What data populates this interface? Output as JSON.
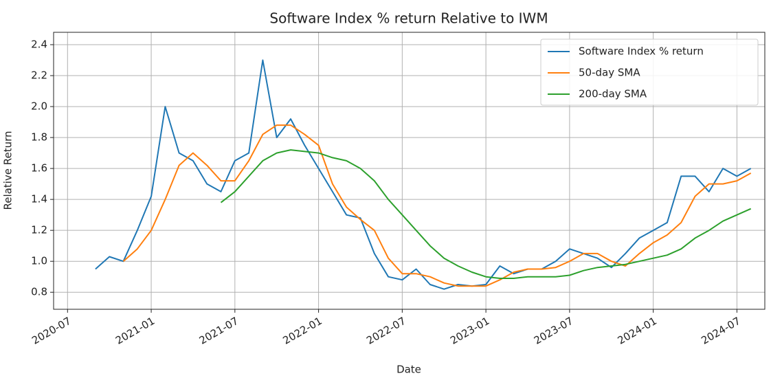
{
  "chart_data": {
    "type": "line",
    "title": "Software Index % return Relative to IWM",
    "x_label": "Date",
    "y_label": "Relative Return",
    "x": [
      "2020-09",
      "2020-10",
      "2020-11",
      "2020-12",
      "2021-01",
      "2021-02",
      "2021-03",
      "2021-04",
      "2021-05",
      "2021-06",
      "2021-07",
      "2021-08",
      "2021-09",
      "2021-10",
      "2021-11",
      "2021-12",
      "2022-01",
      "2022-02",
      "2022-03",
      "2022-04",
      "2022-05",
      "2022-06",
      "2022-07",
      "2022-08",
      "2022-09",
      "2022-10",
      "2022-11",
      "2022-12",
      "2023-01",
      "2023-02",
      "2023-03",
      "2023-04",
      "2023-05",
      "2023-06",
      "2023-07",
      "2023-08",
      "2023-09",
      "2023-10",
      "2023-11",
      "2023-12",
      "2024-01",
      "2024-02",
      "2024-03",
      "2024-04",
      "2024-05",
      "2024-06",
      "2024-07",
      "2024-08"
    ],
    "series": [
      {
        "name": "Software Index % return",
        "color": "#1f77b4",
        "values": [
          0.95,
          1.03,
          1.0,
          1.2,
          1.42,
          2.0,
          1.7,
          1.65,
          1.5,
          1.45,
          1.65,
          1.7,
          2.3,
          1.8,
          1.92,
          1.75,
          1.6,
          1.45,
          1.3,
          1.28,
          1.05,
          0.9,
          0.88,
          0.95,
          0.85,
          0.82,
          0.85,
          0.84,
          0.85,
          0.97,
          0.92,
          0.95,
          0.95,
          1.0,
          1.08,
          1.05,
          1.02,
          0.96,
          1.05,
          1.15,
          1.2,
          1.25,
          1.55,
          1.55,
          1.45,
          1.6,
          1.55,
          1.6
        ]
      },
      {
        "name": "50-day SMA",
        "color": "#ff7f0e",
        "values": [
          null,
          null,
          1.0,
          1.08,
          1.2,
          1.4,
          1.62,
          1.7,
          1.62,
          1.52,
          1.52,
          1.65,
          1.82,
          1.88,
          1.88,
          1.82,
          1.75,
          1.5,
          1.35,
          1.27,
          1.2,
          1.02,
          0.92,
          0.92,
          0.9,
          0.86,
          0.84,
          0.84,
          0.84,
          0.88,
          0.93,
          0.95,
          0.95,
          0.96,
          1.0,
          1.05,
          1.05,
          1.0,
          0.97,
          1.05,
          1.12,
          1.17,
          1.25,
          1.42,
          1.5,
          1.5,
          1.52,
          1.57
        ]
      },
      {
        "name": "200-day SMA",
        "color": "#2ca02c",
        "values": [
          null,
          null,
          null,
          null,
          null,
          null,
          null,
          null,
          null,
          1.38,
          1.45,
          1.55,
          1.65,
          1.7,
          1.72,
          1.71,
          1.7,
          1.67,
          1.65,
          1.6,
          1.52,
          1.4,
          1.3,
          1.2,
          1.1,
          1.02,
          0.97,
          0.93,
          0.9,
          0.89,
          0.89,
          0.9,
          0.9,
          0.9,
          0.91,
          0.94,
          0.96,
          0.97,
          0.98,
          1.0,
          1.02,
          1.04,
          1.08,
          1.15,
          1.2,
          1.26,
          1.3,
          1.34
        ]
      }
    ],
    "xlim": [
      "2020-06",
      "2024-09"
    ],
    "xticks": [
      "2020-07",
      "2021-01",
      "2021-07",
      "2022-01",
      "2022-07",
      "2023-01",
      "2023-07",
      "2024-01",
      "2024-07"
    ],
    "ylim": [
      0.69,
      2.48
    ],
    "yticks": [
      0.8,
      {
        "value": 1,
        "label": "1.0"
      },
      1.2,
      1.4,
      1.6,
      1.8,
      {
        "value": 2,
        "label": "2.0"
      },
      2.2,
      2.4
    ],
    "grid": true,
    "legend": "upper right"
  }
}
